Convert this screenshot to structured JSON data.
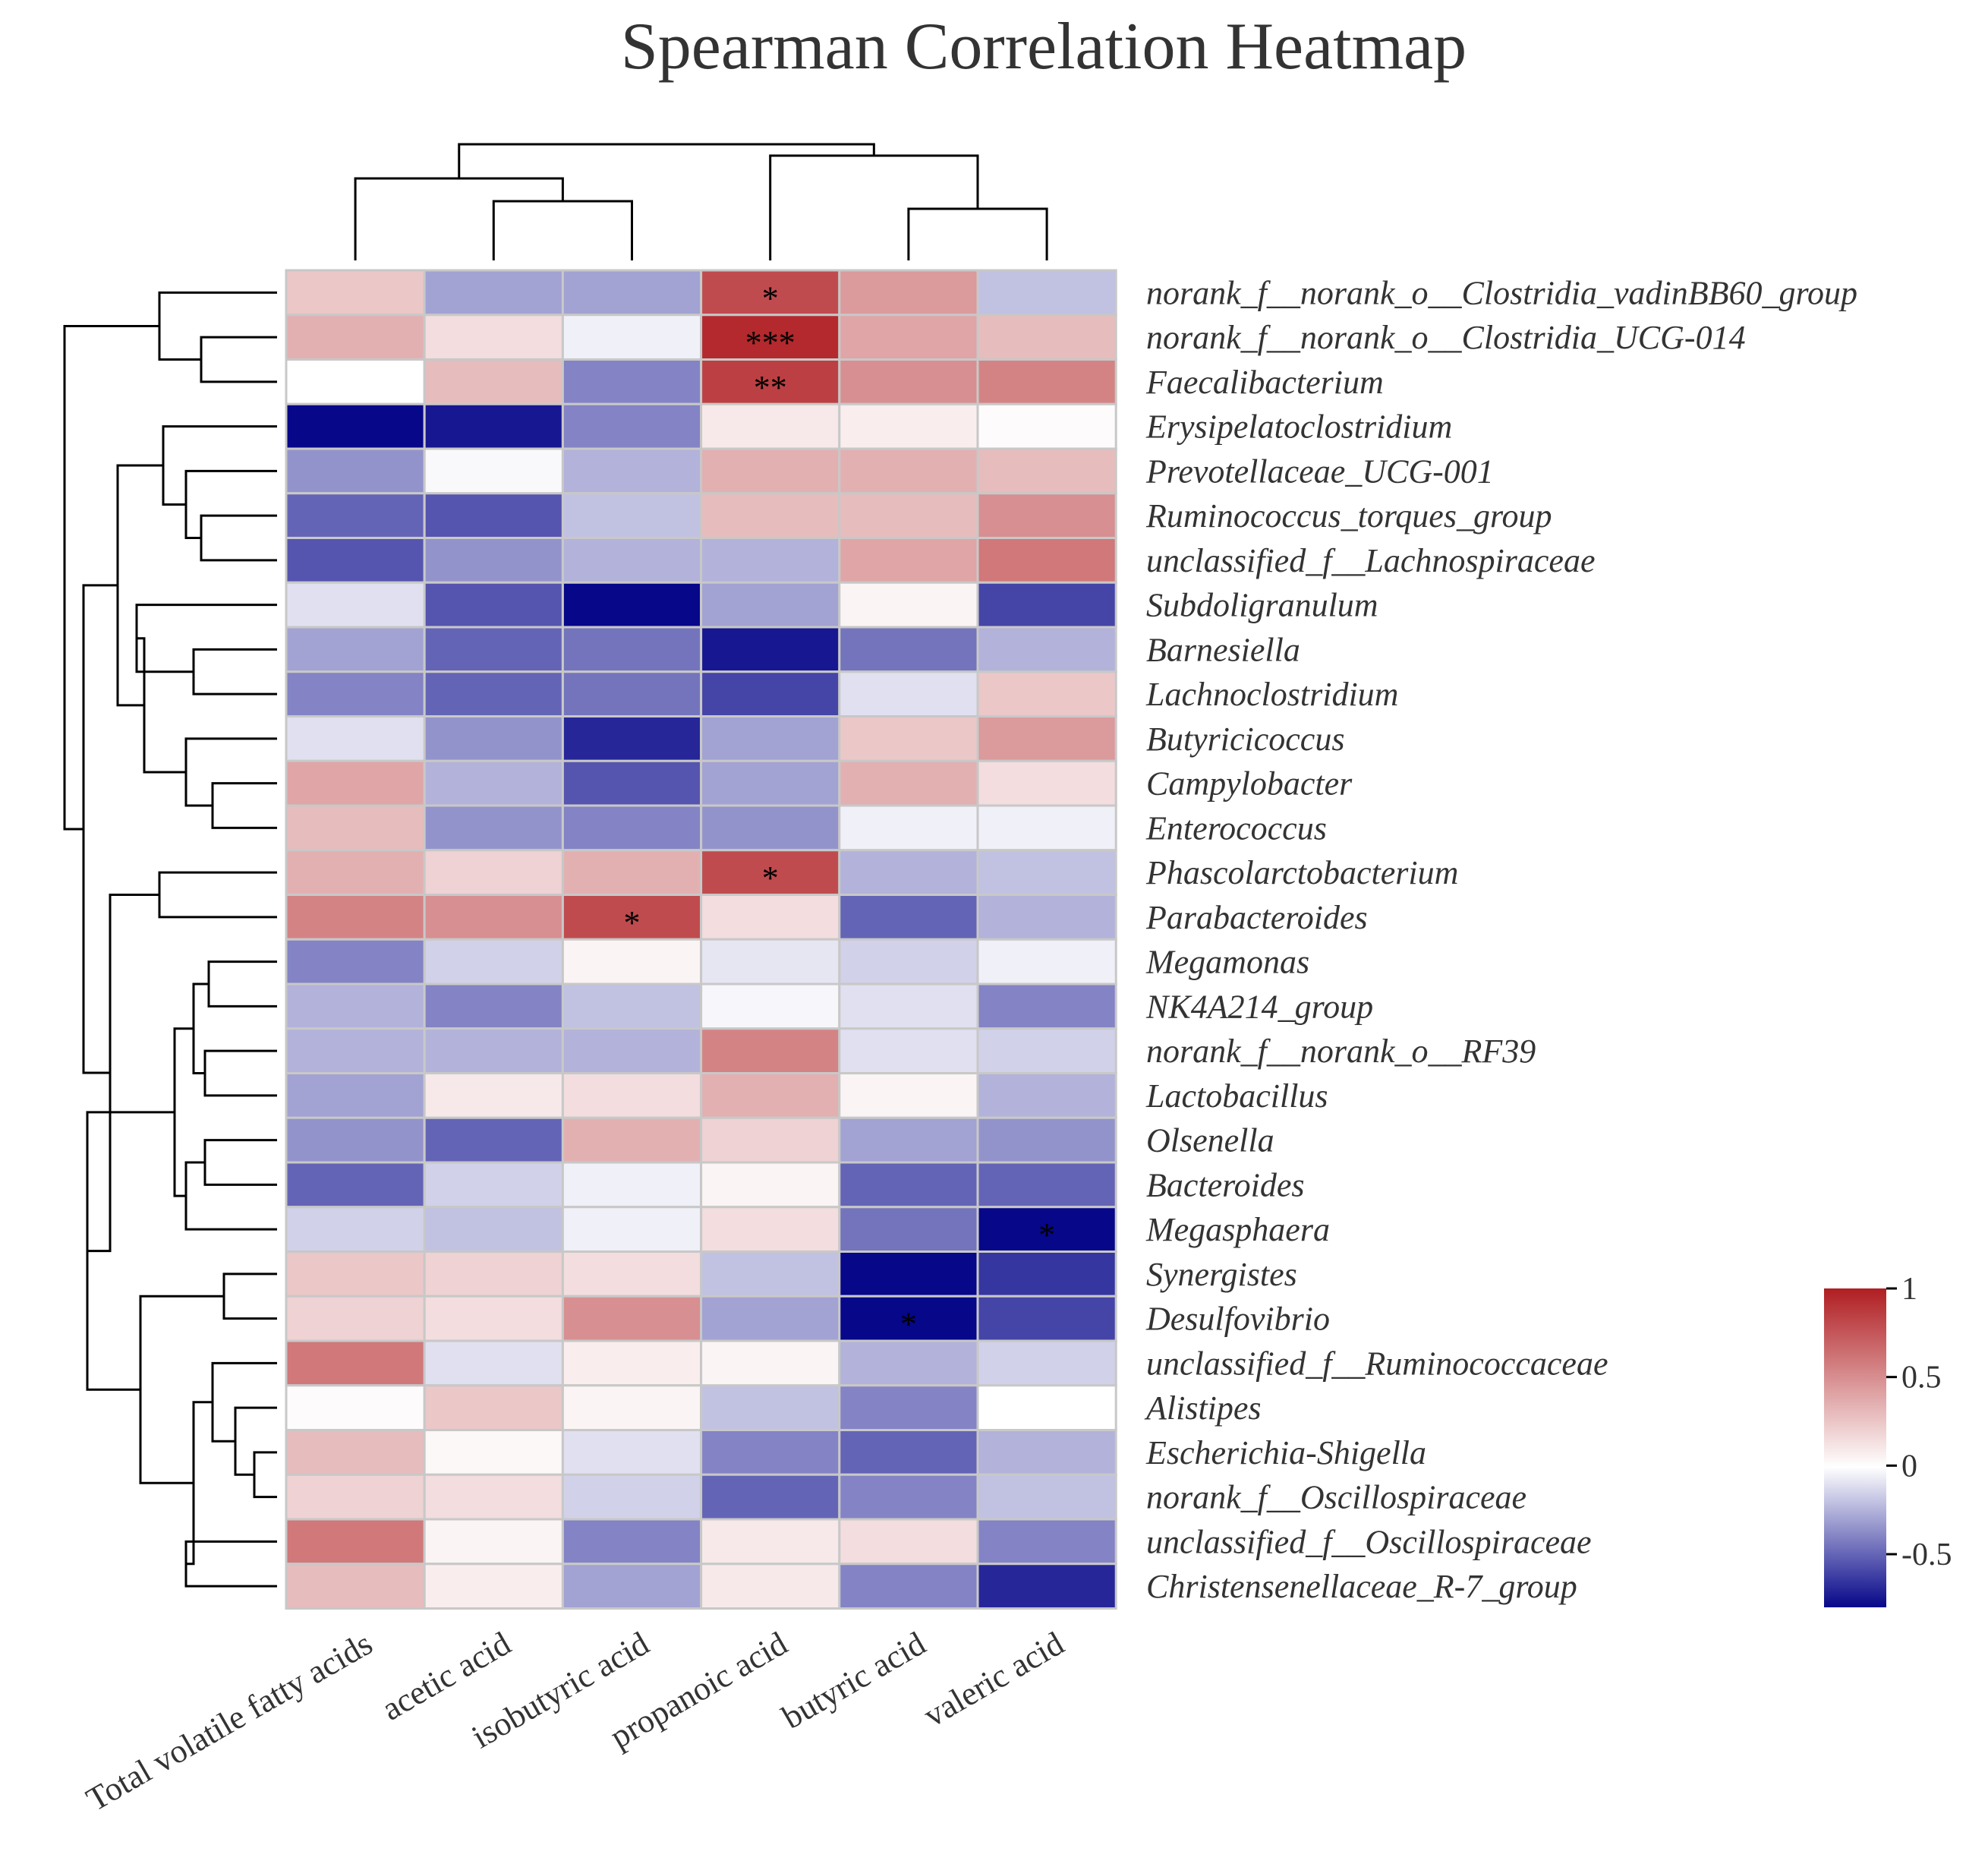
{
  "chart_data": {
    "type": "heatmap",
    "title": "Spearman Correlation Heatmap",
    "columns": [
      "Total volatile fatty acids",
      "acetic acid",
      "isobutyric acid",
      "propanoic acid",
      "butyric acid",
      "valeric acid"
    ],
    "rows": [
      "norank_f__norank_o__Clostridia_vadinBB60_group",
      "norank_f__norank_o__Clostridia_UCG-014",
      "Faecalibacterium",
      "Erysipelatoclostridium",
      "Prevotellaceae_UCG-001",
      "Ruminococcus_torques_group",
      "unclassified_f__Lachnospiraceae",
      "Subdoligranulum",
      "Barnesiella",
      "Lachnoclostridium",
      "Butyricicoccus",
      "Campylobacter",
      "Enterococcus",
      "Phascolarctobacterium",
      "Parabacteroides",
      "Megamonas",
      "NK4A214_group",
      "norank_f__norank_o__RF39",
      "Lactobacillus",
      "Olsenella",
      "Bacteroides",
      "Megasphaera",
      "Synergistes",
      "Desulfovibrio",
      "unclassified_f__Ruminococcaceae",
      "Alistipes",
      "Escherichia-Shigella",
      "norank_f__Oscillospiraceae",
      "unclassified_f__Oscillospiraceae",
      "Christensenellaceae_R-7_group"
    ],
    "values": [
      [
        0.25,
        -0.3,
        -0.3,
        0.8,
        0.45,
        -0.2
      ],
      [
        0.35,
        0.15,
        -0.05,
        0.95,
        0.4,
        0.3
      ],
      [
        0.0,
        0.3,
        -0.4,
        0.85,
        0.5,
        0.55
      ],
      [
        -0.8,
        -0.75,
        -0.4,
        0.1,
        0.08,
        0.02
      ],
      [
        -0.35,
        -0.02,
        -0.25,
        0.35,
        0.35,
        0.3
      ],
      [
        -0.5,
        -0.55,
        -0.2,
        0.3,
        0.3,
        0.5
      ],
      [
        -0.55,
        -0.35,
        -0.25,
        -0.25,
        0.4,
        0.6
      ],
      [
        -0.1,
        -0.55,
        -0.85,
        -0.3,
        0.05,
        -0.6
      ],
      [
        -0.3,
        -0.5,
        -0.45,
        -0.75,
        -0.45,
        -0.25
      ],
      [
        -0.4,
        -0.5,
        -0.45,
        -0.6,
        -0.1,
        0.25
      ],
      [
        -0.1,
        -0.35,
        -0.7,
        -0.3,
        0.25,
        0.45
      ],
      [
        0.4,
        -0.25,
        -0.55,
        -0.3,
        0.35,
        0.15
      ],
      [
        0.3,
        -0.35,
        -0.4,
        -0.35,
        -0.05,
        -0.05
      ],
      [
        0.35,
        0.2,
        0.35,
        0.8,
        -0.25,
        -0.2
      ],
      [
        0.55,
        0.5,
        0.8,
        0.15,
        -0.5,
        -0.25
      ],
      [
        -0.4,
        -0.15,
        0.05,
        -0.08,
        -0.15,
        -0.05
      ],
      [
        -0.25,
        -0.4,
        -0.2,
        -0.03,
        -0.1,
        -0.4
      ],
      [
        -0.25,
        -0.25,
        -0.25,
        0.55,
        -0.1,
        -0.15
      ],
      [
        -0.3,
        0.1,
        0.15,
        0.35,
        0.05,
        -0.25
      ],
      [
        -0.35,
        -0.5,
        0.35,
        0.2,
        -0.3,
        -0.35
      ],
      [
        -0.5,
        -0.15,
        -0.05,
        0.05,
        -0.5,
        -0.5
      ],
      [
        -0.15,
        -0.2,
        -0.05,
        0.15,
        -0.45,
        -0.85
      ],
      [
        0.25,
        0.2,
        0.15,
        -0.2,
        -0.85,
        -0.65
      ],
      [
        0.2,
        0.15,
        0.5,
        -0.3,
        -0.9,
        -0.6
      ],
      [
        0.6,
        -0.1,
        0.08,
        0.05,
        -0.25,
        -0.15
      ],
      [
        0.02,
        0.25,
        0.05,
        -0.2,
        -0.4,
        0.0
      ],
      [
        0.3,
        0.03,
        -0.1,
        -0.4,
        -0.5,
        -0.25
      ],
      [
        0.2,
        0.15,
        -0.15,
        -0.5,
        -0.4,
        -0.2
      ],
      [
        0.6,
        0.05,
        -0.4,
        0.1,
        0.15,
        -0.4
      ],
      [
        0.3,
        0.08,
        -0.3,
        0.1,
        -0.4,
        -0.7
      ]
    ],
    "significance": [
      [
        "",
        "",
        "",
        "*",
        "",
        ""
      ],
      [
        "",
        "",
        "",
        "***",
        "",
        ""
      ],
      [
        "",
        "",
        "",
        "**",
        "",
        ""
      ],
      [
        "",
        "",
        "",
        "",
        "",
        ""
      ],
      [
        "",
        "",
        "",
        "",
        "",
        ""
      ],
      [
        "",
        "",
        "",
        "",
        "",
        ""
      ],
      [
        "",
        "",
        "",
        "",
        "",
        ""
      ],
      [
        "",
        "",
        "",
        "",
        "",
        ""
      ],
      [
        "",
        "",
        "",
        "",
        "",
        ""
      ],
      [
        "",
        "",
        "",
        "",
        "",
        ""
      ],
      [
        "",
        "",
        "",
        "",
        "",
        ""
      ],
      [
        "",
        "",
        "",
        "",
        "",
        ""
      ],
      [
        "",
        "",
        "",
        "",
        "",
        ""
      ],
      [
        "",
        "",
        "",
        "*",
        "",
        ""
      ],
      [
        "",
        "",
        "*",
        "",
        "",
        ""
      ],
      [
        "",
        "",
        "",
        "",
        "",
        ""
      ],
      [
        "",
        "",
        "",
        "",
        "",
        ""
      ],
      [
        "",
        "",
        "",
        "",
        "",
        ""
      ],
      [
        "",
        "",
        "",
        "",
        "",
        ""
      ],
      [
        "",
        "",
        "",
        "",
        "",
        ""
      ],
      [
        "",
        "",
        "",
        "",
        "",
        ""
      ],
      [
        "",
        "",
        "",
        "",
        "",
        "*"
      ],
      [
        "",
        "",
        "",
        "",
        "",
        ""
      ],
      [
        "",
        "",
        "",
        "",
        "*",
        ""
      ],
      [
        "",
        "",
        "",
        "",
        "",
        ""
      ],
      [
        "",
        "",
        "",
        "",
        "",
        ""
      ],
      [
        "",
        "",
        "",
        "",
        "",
        ""
      ],
      [
        "",
        "",
        "",
        "",
        "",
        ""
      ],
      [
        "",
        "",
        "",
        "",
        "",
        ""
      ],
      [
        "",
        "",
        "",
        "",
        "",
        ""
      ]
    ],
    "legend": {
      "ticks": [
        1,
        0.5,
        0,
        -0.5
      ],
      "tick_labels": [
        "1",
        "0.5",
        "0",
        "-0.5"
      ],
      "range": [
        -0.8,
        1.0
      ],
      "placement": "right",
      "colors": {
        "low": "#07078a",
        "mid": "#ffffff",
        "high": "#b01e22"
      }
    }
  }
}
